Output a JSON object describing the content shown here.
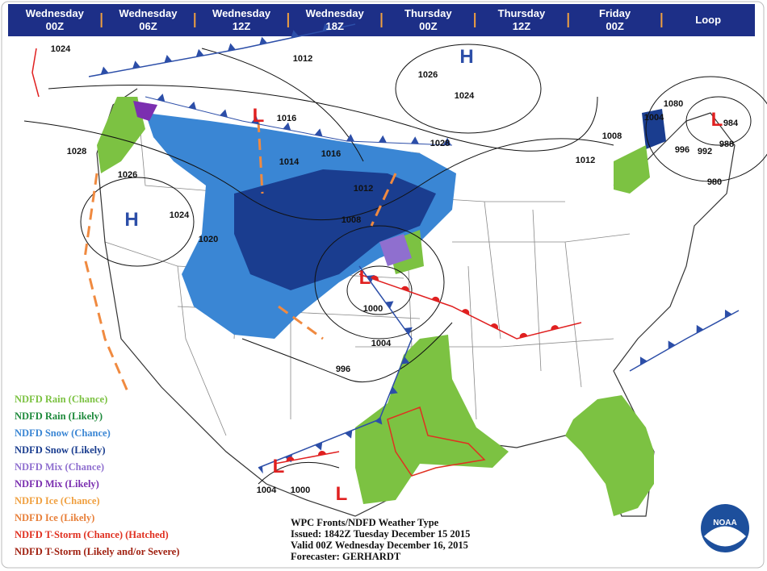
{
  "nav": {
    "tabs": [
      {
        "day": "Wednesday",
        "time": "00Z"
      },
      {
        "day": "Wednesday",
        "time": "06Z"
      },
      {
        "day": "Wednesday",
        "time": "12Z"
      },
      {
        "day": "Wednesday",
        "time": "18Z"
      },
      {
        "day": "Thursday",
        "time": "00Z"
      },
      {
        "day": "Thursday",
        "time": "12Z"
      },
      {
        "day": "Friday",
        "time": "00Z"
      },
      {
        "day": "Loop"
      }
    ]
  },
  "map": {
    "isobars": [
      "1024",
      "1012",
      "1026",
      "1024",
      "1016",
      "1080",
      "1004",
      "984",
      "1008",
      "996",
      "992",
      "988",
      "1028",
      "1014",
      "1016",
      "1028",
      "1012",
      "980",
      "1026",
      "1012",
      "1024",
      "1008",
      "1020",
      "1000",
      "1004",
      "996",
      "1004",
      "1000"
    ],
    "highs": [
      "H",
      "H"
    ],
    "lows": [
      "L",
      "L",
      "L",
      "L",
      "L"
    ]
  },
  "legend": [
    {
      "text": "NDFD Rain (Chance)",
      "color": "#7cc242"
    },
    {
      "text": "NDFD Rain (Likely)",
      "color": "#1e8a3c"
    },
    {
      "text": "NDFD Snow (Chance)",
      "color": "#3a86d4"
    },
    {
      "text": "NDFD Snow (Likely)",
      "color": "#1a3d8f"
    },
    {
      "text": "NDFD Mix (Chance)",
      "color": "#8f6fcf"
    },
    {
      "text": "NDFD Mix (Likely)",
      "color": "#7b2fb0"
    },
    {
      "text": "NDFD Ice (Chance)",
      "color": "#f0a040"
    },
    {
      "text": "NDFD Ice (Likely)",
      "color": "#e8803a"
    },
    {
      "text": "NDFD T-Storm (Chance) (Hatched)",
      "color": "#e03020"
    },
    {
      "text": "NDFD T-Storm (Likely and/or Severe)",
      "color": "#a02010"
    }
  ],
  "info": {
    "title": "WPC Fronts/NDFD Weather Type",
    "issued": "Issued: 1842Z Tuesday December 15 2015",
    "valid": "Valid 00Z Wednesday December 16, 2015",
    "forecaster": "Forecaster: GERHARDT"
  },
  "logo": "NOAA"
}
